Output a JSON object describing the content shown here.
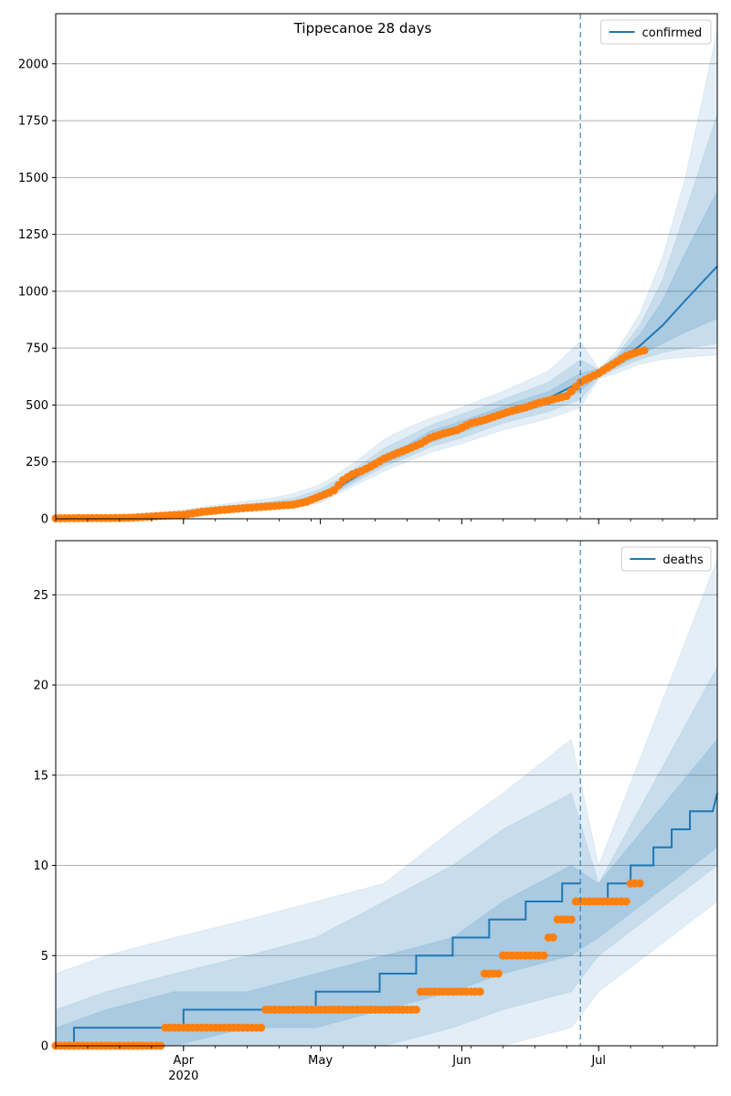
{
  "figure": {
    "title": "Tippecanoe 28 days"
  },
  "x_axis": {
    "ticks": [
      {
        "date": "2020-04-01",
        "label": "Apr",
        "sublabel": "2020"
      },
      {
        "date": "2020-05-01",
        "label": "May",
        "sublabel": ""
      },
      {
        "date": "2020-06-01",
        "label": "Jun",
        "sublabel": ""
      },
      {
        "date": "2020-07-01",
        "label": "Jul",
        "sublabel": ""
      }
    ],
    "range": [
      "2020-03-04",
      "2020-07-27"
    ],
    "forecast_start": "2020-06-27"
  },
  "colors": {
    "model": "#1f77b4",
    "observed": "#ff7f0e",
    "band": "#1f77b4",
    "grid": "#b0b0b0",
    "vline": "#1f77b4"
  },
  "chart_data": [
    {
      "type": "line",
      "panel": "top",
      "legend": [
        "confirmed"
      ],
      "legend_position": "top-right",
      "grid": "horizontal",
      "ylim": [
        0,
        2220
      ],
      "yticks": [
        0,
        250,
        500,
        750,
        1000,
        1250,
        1500,
        1750,
        2000
      ],
      "model": {
        "name": "confirmed",
        "x": [
          "2020-03-04",
          "2020-03-15",
          "2020-03-25",
          "2020-04-01",
          "2020-04-10",
          "2020-04-20",
          "2020-04-25",
          "2020-05-01",
          "2020-05-05",
          "2020-05-10",
          "2020-05-15",
          "2020-05-20",
          "2020-05-25",
          "2020-06-01",
          "2020-06-10",
          "2020-06-20",
          "2020-06-27",
          "2020-07-01",
          "2020-07-05",
          "2020-07-10",
          "2020-07-15",
          "2020-07-20",
          "2020-07-27"
        ],
        "y": [
          5,
          6,
          10,
          20,
          40,
          55,
          65,
          100,
          140,
          200,
          260,
          305,
          360,
          405,
          470,
          530,
          600,
          645,
          690,
          760,
          850,
          960,
          1110
        ]
      },
      "bands": [
        {
          "lower": [
            0,
            0,
            0,
            5,
            25,
            42,
            48,
            70,
            110,
            160,
            210,
            250,
            290,
            330,
            390,
            440,
            490,
            615,
            640,
            680,
            700,
            710,
            720
          ],
          "upper": [
            12,
            15,
            25,
            40,
            65,
            90,
            110,
            150,
            200,
            270,
            350,
            400,
            440,
            490,
            560,
            650,
            780,
            660,
            740,
            900,
            1150,
            1500,
            2150
          ]
        },
        {
          "lower": [
            0,
            1,
            3,
            10,
            30,
            46,
            54,
            80,
            120,
            175,
            230,
            270,
            315,
            355,
            420,
            470,
            525,
            620,
            660,
            700,
            730,
            750,
            770
          ],
          "upper": [
            9,
            11,
            18,
            32,
            55,
            75,
            90,
            130,
            175,
            240,
            310,
            360,
            410,
            460,
            525,
            600,
            700,
            655,
            720,
            850,
            1050,
            1350,
            1780
          ]
        },
        {
          "lower": [
            1,
            2,
            5,
            14,
            34,
            50,
            58,
            88,
            128,
            188,
            242,
            285,
            335,
            380,
            445,
            500,
            560,
            630,
            670,
            720,
            770,
            820,
            880
          ],
          "upper": [
            8,
            9,
            15,
            27,
            48,
            65,
            75,
            115,
            155,
            215,
            280,
            325,
            385,
            430,
            495,
            560,
            640,
            660,
            710,
            810,
            960,
            1170,
            1440
          ]
        }
      ],
      "observed": {
        "name": "observed confirmed",
        "x": [
          "2020-03-04",
          "2020-03-10",
          "2020-03-15",
          "2020-03-20",
          "2020-03-25",
          "2020-03-28",
          "2020-04-01",
          "2020-04-05",
          "2020-04-10",
          "2020-04-15",
          "2020-04-20",
          "2020-04-25",
          "2020-04-28",
          "2020-05-01",
          "2020-05-03",
          "2020-05-04",
          "2020-05-06",
          "2020-05-08",
          "2020-05-10",
          "2020-05-12",
          "2020-05-15",
          "2020-05-18",
          "2020-05-20",
          "2020-05-23",
          "2020-05-25",
          "2020-05-28",
          "2020-05-31",
          "2020-06-03",
          "2020-06-06",
          "2020-06-09",
          "2020-06-12",
          "2020-06-15",
          "2020-06-18",
          "2020-06-20",
          "2020-06-22",
          "2020-06-24",
          "2020-06-25",
          "2020-06-26",
          "2020-06-27",
          "2020-06-29",
          "2020-07-01",
          "2020-07-03",
          "2020-07-05",
          "2020-07-07",
          "2020-07-09",
          "2020-07-11"
        ],
        "y": [
          2,
          3,
          3,
          4,
          10,
          14,
          18,
          30,
          40,
          48,
          55,
          62,
          75,
          100,
          115,
          125,
          170,
          195,
          210,
          230,
          265,
          290,
          305,
          330,
          355,
          375,
          390,
          420,
          435,
          455,
          475,
          490,
          510,
          520,
          530,
          540,
          560,
          580,
          600,
          620,
          640,
          665,
          690,
          715,
          730,
          740
        ]
      }
    },
    {
      "type": "line",
      "panel": "bottom",
      "legend": [
        "deaths"
      ],
      "legend_position": "top-right",
      "grid": "horizontal",
      "ylim": [
        0,
        28
      ],
      "yticks": [
        0,
        5,
        10,
        15,
        20,
        25
      ],
      "model": {
        "name": "deaths",
        "x": [
          "2020-03-04",
          "2020-03-08",
          "2020-03-08",
          "2020-04-01",
          "2020-04-01",
          "2020-04-30",
          "2020-04-30",
          "2020-05-14",
          "2020-05-14",
          "2020-05-22",
          "2020-05-22",
          "2020-05-30",
          "2020-05-30",
          "2020-06-07",
          "2020-06-07",
          "2020-06-15",
          "2020-06-15",
          "2020-06-23",
          "2020-06-23",
          "2020-06-27"
        ],
        "y": [
          0,
          0,
          1,
          1,
          2,
          2,
          3,
          3,
          4,
          4,
          5,
          5,
          6,
          6,
          7,
          7,
          8,
          8,
          9,
          9
        ],
        "forecast_x": [
          "2020-06-29",
          "2020-07-03",
          "2020-07-03",
          "2020-07-08",
          "2020-07-08",
          "2020-07-13",
          "2020-07-13",
          "2020-07-17",
          "2020-07-17",
          "2020-07-21",
          "2020-07-21",
          "2020-07-24",
          "2020-07-24",
          "2020-07-26",
          "2020-07-27"
        ],
        "forecast_y": [
          8,
          8,
          9,
          9,
          10,
          10,
          11,
          11,
          12,
          12,
          13,
          13,
          13,
          13,
          14
        ]
      },
      "bands": [
        {
          "lower": [
            0,
            0,
            0,
            0,
            0,
            0,
            0,
            0,
            1,
            3,
            8
          ],
          "upper": [
            4,
            5,
            6,
            7,
            8,
            9,
            12,
            14,
            17,
            10,
            27
          ]
        },
        {
          "lower": [
            0,
            0,
            0,
            0,
            0,
            0,
            1,
            2,
            3,
            5,
            10
          ],
          "upper": [
            2,
            3,
            4,
            5,
            6,
            8,
            10,
            12,
            14,
            9,
            21
          ]
        },
        {
          "lower": [
            0,
            0,
            0,
            1,
            1,
            2,
            3,
            4,
            5,
            6,
            11
          ],
          "upper": [
            1,
            2,
            3,
            3,
            4,
            5,
            6,
            8,
            10,
            9,
            17
          ]
        }
      ],
      "band_x": [
        "2020-03-04",
        "2020-03-15",
        "2020-03-30",
        "2020-04-15",
        "2020-04-30",
        "2020-05-15",
        "2020-05-30",
        "2020-06-10",
        "2020-06-25",
        "2020-07-01",
        "2020-07-27"
      ],
      "observed": {
        "name": "observed deaths",
        "x": [
          "2020-03-04",
          "2020-03-06",
          "2020-03-08",
          "2020-03-10",
          "2020-03-12",
          "2020-03-14",
          "2020-03-16",
          "2020-03-18",
          "2020-03-20",
          "2020-03-22",
          "2020-03-24",
          "2020-03-26",
          "2020-03-28",
          "2020-03-30",
          "2020-04-01",
          "2020-04-03",
          "2020-04-05",
          "2020-04-07",
          "2020-04-09",
          "2020-04-11",
          "2020-04-13",
          "2020-04-15",
          "2020-04-17",
          "2020-04-19",
          "2020-04-21",
          "2020-04-23",
          "2020-04-25",
          "2020-04-27",
          "2020-04-29",
          "2020-05-01",
          "2020-05-03",
          "2020-05-05",
          "2020-05-07",
          "2020-05-09",
          "2020-05-11",
          "2020-05-13",
          "2020-05-15",
          "2020-05-17",
          "2020-05-19",
          "2020-05-21",
          "2020-05-23",
          "2020-05-25",
          "2020-05-27",
          "2020-05-29",
          "2020-05-31",
          "2020-06-02",
          "2020-06-04",
          "2020-06-06",
          "2020-06-08",
          "2020-06-10",
          "2020-06-12",
          "2020-06-14",
          "2020-06-16",
          "2020-06-18",
          "2020-06-20",
          "2020-06-22",
          "2020-06-24",
          "2020-06-26",
          "2020-06-28",
          "2020-06-30",
          "2020-07-02",
          "2020-07-04",
          "2020-07-06",
          "2020-07-08",
          "2020-07-10"
        ],
        "y": [
          0,
          0,
          0,
          0,
          0,
          0,
          0,
          0,
          0,
          0,
          0,
          0,
          1,
          1,
          1,
          1,
          1,
          1,
          1,
          1,
          1,
          1,
          1,
          2,
          2,
          2,
          2,
          2,
          2,
          2,
          2,
          2,
          2,
          2,
          2,
          2,
          2,
          2,
          2,
          2,
          3,
          3,
          3,
          3,
          3,
          3,
          3,
          4,
          4,
          5,
          5,
          5,
          5,
          5,
          6,
          7,
          7,
          8,
          8,
          8,
          8,
          8,
          8,
          9,
          9
        ]
      }
    }
  ]
}
